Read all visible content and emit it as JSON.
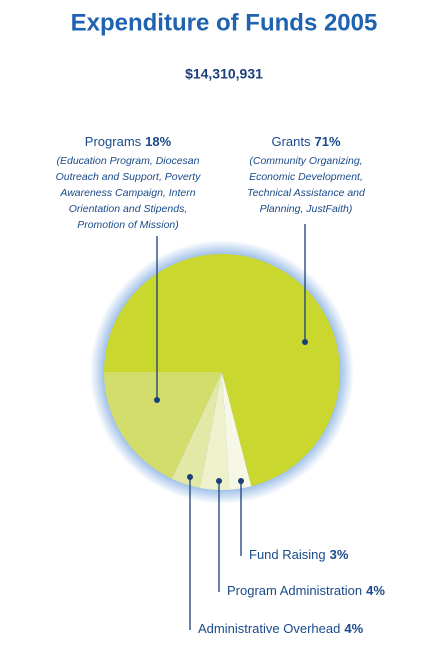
{
  "chart_data": {
    "type": "pie",
    "title": "Expenditure of Funds 2005",
    "subtitle": "$14,310,931",
    "categories": [
      "Programs",
      "Administrative Overhead",
      "Program Administration",
      "Fund Raising",
      "Grants"
    ],
    "values": [
      18,
      4,
      4,
      3,
      71
    ],
    "value_labels": [
      "18%",
      "4%",
      "4%",
      "3%",
      "71%"
    ],
    "descriptions": [
      [
        "(Education Program, Diocesan",
        "Outreach and Support, Poverty",
        "Awareness Campaign, Intern",
        "Orientation and Stipends,",
        "Promotion of Mission)"
      ],
      null,
      null,
      null,
      [
        "(Community Organizing,",
        "Economic Development,",
        "Technical Assistance and",
        "Planning, JustFaith)"
      ]
    ],
    "colors": [
      "#d3dd6c",
      "#e2e8a6",
      "#eef1cc",
      "#f6f7e4",
      "#c9d72f"
    ]
  }
}
